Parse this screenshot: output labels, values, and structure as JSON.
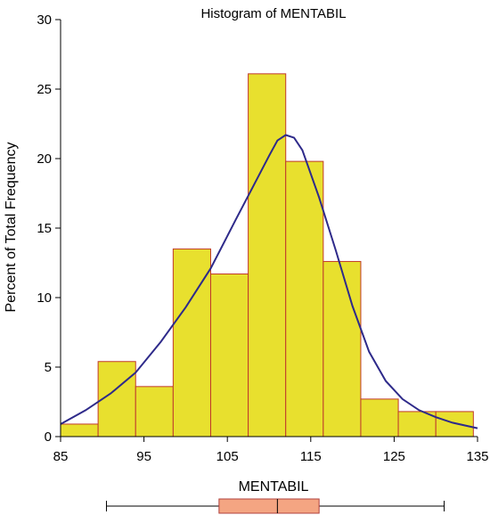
{
  "chart_data": {
    "type": "bar",
    "title": "Histogram of MENTABIL",
    "xlabel": "MENTABIL",
    "ylabel": "Percent of Total Frequency",
    "xlim": [
      85,
      135
    ],
    "ylim": [
      0,
      30
    ],
    "x_ticks": [
      85,
      95,
      105,
      115,
      125,
      135
    ],
    "y_ticks": [
      0,
      5,
      10,
      15,
      20,
      25,
      30
    ],
    "bin_width": 4.5,
    "bins": [
      {
        "start": 85.0,
        "end": 89.5,
        "value": 0.9
      },
      {
        "start": 89.5,
        "end": 94.0,
        "value": 5.4
      },
      {
        "start": 94.0,
        "end": 98.5,
        "value": 3.6
      },
      {
        "start": 98.5,
        "end": 103.0,
        "value": 13.5
      },
      {
        "start": 103.0,
        "end": 107.5,
        "value": 11.7
      },
      {
        "start": 107.5,
        "end": 112.0,
        "value": 26.1
      },
      {
        "start": 112.0,
        "end": 116.5,
        "value": 19.8
      },
      {
        "start": 116.5,
        "end": 121.0,
        "value": 12.6
      },
      {
        "start": 121.0,
        "end": 125.5,
        "value": 2.7
      },
      {
        "start": 125.5,
        "end": 130.0,
        "value": 1.8
      },
      {
        "start": 130.0,
        "end": 134.5,
        "value": 1.8
      }
    ],
    "density_curve": {
      "x": [
        85,
        88,
        91,
        94,
        97,
        100,
        103,
        106,
        108,
        110,
        111,
        112,
        113,
        114,
        116,
        118,
        120,
        122,
        124,
        126,
        128,
        130,
        132,
        135
      ],
      "y": [
        0.9,
        1.9,
        3.1,
        4.6,
        6.8,
        9.3,
        12.1,
        15.6,
        17.9,
        20.2,
        21.3,
        21.7,
        21.5,
        20.6,
        17.2,
        13.4,
        9.4,
        6.1,
        4.0,
        2.7,
        1.9,
        1.4,
        1.0,
        0.6
      ],
      "color": "#2e2a8a"
    },
    "boxplot": {
      "min": 90.5,
      "q1": 104,
      "median": 111,
      "q3": 116,
      "max": 131
    },
    "bar_fill": "#e8e02e",
    "bar_stroke": "#c0392b",
    "box_fill": "#f4a582",
    "box_stroke": "#b0413e",
    "grid": false
  }
}
